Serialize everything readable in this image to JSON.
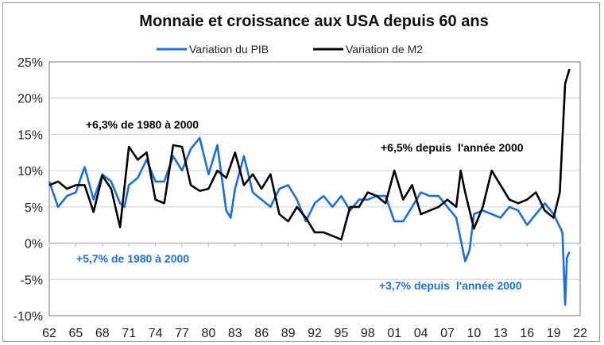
{
  "chart_data": {
    "type": "line",
    "title": "Monnaie et croissance aux USA depuis 60 ans",
    "xlabel": "",
    "ylabel": "",
    "xlim": [
      1962,
      2022
    ],
    "ylim": [
      -10,
      25
    ],
    "grid": true,
    "legend_position": "top",
    "x_tick_labels": [
      "62",
      "65",
      "68",
      "71",
      "74",
      "77",
      "80",
      "83",
      "86",
      "89",
      "92",
      "95",
      "98",
      "01",
      "04",
      "07",
      "10",
      "13",
      "16",
      "19",
      "22"
    ],
    "y_tick_labels": [
      "25%",
      "20%",
      "15%",
      "10%",
      "5%",
      "0%",
      "-5%",
      "-10%"
    ],
    "y_ticks": [
      25,
      20,
      15,
      10,
      5,
      0,
      -5,
      -10
    ],
    "series": [
      {
        "name": "Variation du PIB",
        "color": "#1f6fd0",
        "x": [
          1962,
          1963,
          1964,
          1965,
          1966,
          1967,
          1968,
          1969,
          1970,
          1970.5,
          1971,
          1972,
          1973,
          1974,
          1975,
          1976,
          1977,
          1978,
          1979,
          1980,
          1981,
          1982,
          1982.5,
          1983,
          1984,
          1985,
          1986,
          1987,
          1988,
          1989,
          1990,
          1991,
          1992,
          1993,
          1994,
          1995,
          1996,
          1997,
          1998,
          1999,
          2000,
          2001,
          2002,
          2003,
          2004,
          2005,
          2006,
          2007,
          2008,
          2009,
          2009.5,
          2010,
          2011,
          2012,
          2013,
          2014,
          2015,
          2016,
          2017,
          2018,
          2019,
          2020,
          2020.3,
          2020.5,
          2020.8
        ],
        "y": [
          8.5,
          5,
          6.5,
          7,
          10.5,
          6,
          9.5,
          8.5,
          5.5,
          5,
          8,
          9,
          11.5,
          8.5,
          8.5,
          12,
          10,
          13,
          14.5,
          9.5,
          13.5,
          4.5,
          3.5,
          7.5,
          12,
          7,
          6,
          5,
          7.5,
          8,
          6,
          3,
          5.5,
          6.5,
          5,
          6.5,
          4.5,
          6,
          6,
          6.5,
          6.5,
          3,
          3,
          5,
          7,
          6.5,
          6.5,
          5,
          3.5,
          -2.5,
          -1,
          4,
          4.5,
          4,
          3.5,
          5,
          4.5,
          2.5,
          4,
          5.5,
          4,
          1.5,
          -8.5,
          -2,
          -1.2
        ]
      },
      {
        "name": "Variation de M2",
        "color": "#000000",
        "x": [
          1962,
          1963,
          1964,
          1965,
          1966,
          1967,
          1968,
          1969,
          1970,
          1971,
          1972,
          1973,
          1974,
          1975,
          1976,
          1977,
          1978,
          1979,
          1980,
          1981,
          1982,
          1983,
          1984,
          1985,
          1986,
          1987,
          1988,
          1989,
          1990,
          1991,
          1992,
          1993,
          1994,
          1995,
          1996,
          1997,
          1998,
          1999,
          2000,
          2001,
          2002,
          2003,
          2004,
          2005,
          2006,
          2007,
          2008,
          2008.5,
          2009,
          2010,
          2011,
          2012,
          2013,
          2014,
          2015,
          2016,
          2017,
          2018,
          2019,
          2019.7,
          2020.3,
          2020.8
        ],
        "y": [
          8,
          8.5,
          7.5,
          8,
          8,
          4.3,
          9.3,
          7.5,
          2.2,
          13.3,
          11.5,
          12.5,
          6,
          5.5,
          13.5,
          13.3,
          8,
          7.2,
          7.5,
          10,
          9,
          12.5,
          8,
          9.5,
          7.5,
          9.5,
          4,
          3,
          5,
          3.5,
          1.5,
          1.5,
          1,
          0.5,
          5,
          5,
          7,
          6.5,
          5.5,
          10,
          6,
          8,
          4,
          4.5,
          5,
          6,
          5,
          10,
          7,
          2,
          5,
          10,
          8,
          6,
          5.5,
          6,
          7,
          4.5,
          3.5,
          7,
          22,
          24
        ]
      }
    ],
    "annotations": [
      {
        "text": "+6,3% de 1980 à 2000",
        "color": "#000000"
      },
      {
        "text": "+5,7% de 1980 à 2000",
        "color": "#1f6fd0"
      },
      {
        "text": "+6,5% depuis  l'année 2000",
        "color": "#000000"
      },
      {
        "text": "+3,7% depuis  l'année 2000",
        "color": "#1f6fd0"
      }
    ]
  }
}
